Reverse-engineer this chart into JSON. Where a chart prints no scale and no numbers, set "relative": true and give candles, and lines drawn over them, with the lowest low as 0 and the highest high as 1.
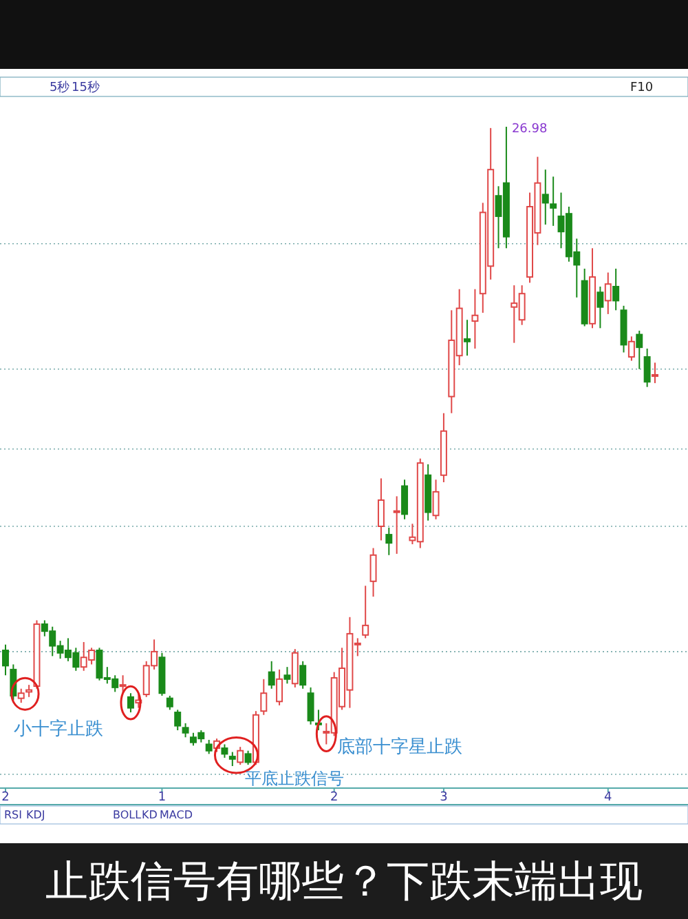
{
  "chart_data": {
    "type": "candlestick",
    "title": "止跌信号有哪些？下跌末端出现",
    "relative": true,
    "ref_lines": [
      {
        "axis": "y",
        "value": 0.817,
        "color": "#77aaaa",
        "line_style": "dotted"
      },
      {
        "axis": "y",
        "value": 0.621,
        "color": "#77aaaa",
        "line_style": "dotted"
      },
      {
        "axis": "y",
        "value": 0.496,
        "color": "#77aaaa",
        "line_style": "dotted"
      },
      {
        "axis": "y",
        "value": 0.375,
        "color": "#77aaaa",
        "line_style": "dotted"
      },
      {
        "axis": "y",
        "value": 0.179,
        "color": "#77aaaa",
        "line_style": "dotted"
      }
    ],
    "categories": [
      "2",
      null,
      null,
      null,
      null,
      null,
      null,
      null,
      null,
      null,
      null,
      null,
      null,
      null,
      null,
      null,
      null,
      null,
      null,
      null,
      "1",
      null,
      null,
      null,
      null,
      null,
      null,
      null,
      null,
      null,
      null,
      null,
      null,
      null,
      null,
      null,
      null,
      null,
      null,
      null,
      null,
      null,
      "2",
      null,
      null,
      null,
      null,
      null,
      null,
      null,
      null,
      null,
      null,
      null,
      null,
      null,
      "3",
      null,
      null,
      null,
      null,
      null,
      null,
      null,
      null,
      null,
      null,
      null,
      null,
      null,
      null,
      null,
      null,
      null,
      null,
      null,
      null,
      "4",
      null,
      null,
      null,
      null,
      null,
      null
    ],
    "ohlc": [
      [
        0.181,
        0.19,
        0.142,
        0.157
      ],
      [
        0.151,
        0.159,
        0.103,
        0.11
      ],
      [
        0.106,
        0.121,
        0.099,
        0.114
      ],
      [
        0.116,
        0.127,
        0.108,
        0.119
      ],
      [
        0.125,
        0.228,
        0.121,
        0.222
      ],
      [
        0.222,
        0.228,
        0.203,
        0.211
      ],
      [
        0.211,
        0.218,
        0.172,
        0.188
      ],
      [
        0.188,
        0.196,
        0.168,
        0.177
      ],
      [
        0.181,
        0.2,
        0.164,
        0.17
      ],
      [
        0.177,
        0.185,
        0.149,
        0.155
      ],
      [
        0.155,
        0.194,
        0.149,
        0.17
      ],
      [
        0.166,
        0.185,
        0.159,
        0.181
      ],
      [
        0.181,
        0.185,
        0.134,
        0.138
      ],
      [
        0.138,
        0.155,
        0.129,
        0.136
      ],
      [
        0.136,
        0.142,
        0.116,
        0.123
      ],
      [
        0.125,
        0.142,
        0.114,
        0.127
      ],
      [
        0.108,
        0.114,
        0.084,
        0.091
      ],
      [
        0.099,
        0.114,
        0.091,
        0.103
      ],
      [
        0.112,
        0.164,
        0.108,
        0.157
      ],
      [
        0.157,
        0.198,
        0.151,
        0.179
      ],
      [
        0.17,
        0.177,
        0.11,
        0.114
      ],
      [
        0.106,
        0.11,
        0.088,
        0.093
      ],
      [
        0.084,
        0.088,
        0.056,
        0.063
      ],
      [
        0.06,
        0.067,
        0.045,
        0.052
      ],
      [
        0.045,
        0.052,
        0.032,
        0.037
      ],
      [
        0.052,
        0.056,
        0.037,
        0.043
      ],
      [
        0.034,
        0.041,
        0.019,
        0.024
      ],
      [
        0.028,
        0.043,
        0.022,
        0.039
      ],
      [
        0.028,
        0.034,
        0.013,
        0.019
      ],
      [
        0.015,
        0.022,
        0,
        0.011
      ],
      [
        0.006,
        0.03,
        0.002,
        0.024
      ],
      [
        0.019,
        0.024,
        0.002,
        0.006
      ],
      [
        0.006,
        0.086,
        0.002,
        0.08
      ],
      [
        0.086,
        0.136,
        0.08,
        0.114
      ],
      [
        0.147,
        0.164,
        0.121,
        0.127
      ],
      [
        0.101,
        0.151,
        0.095,
        0.136
      ],
      [
        0.142,
        0.155,
        0.129,
        0.136
      ],
      [
        0.129,
        0.183,
        0.123,
        0.177
      ],
      [
        0.157,
        0.164,
        0.121,
        0.127
      ],
      [
        0.114,
        0.123,
        0.065,
        0.071
      ],
      [
        0.067,
        0.088,
        0.056,
        0.065
      ],
      [
        0.052,
        0.067,
        0.034,
        0.054
      ],
      [
        0.052,
        0.147,
        0.047,
        0.138
      ],
      [
        0.093,
        0.185,
        0.088,
        0.153
      ],
      [
        0.119,
        0.233,
        0.091,
        0.207
      ],
      [
        0.19,
        0.2,
        0.172,
        0.192
      ],
      [
        0.205,
        0.282,
        0.2,
        0.22
      ],
      [
        0.289,
        0.341,
        0.265,
        0.33
      ],
      [
        0.375,
        0.45,
        0.353,
        0.416
      ],
      [
        0.362,
        0.373,
        0.33,
        0.349
      ],
      [
        0.397,
        0.422,
        0.332,
        0.399
      ],
      [
        0.438,
        0.448,
        0.386,
        0.394
      ],
      [
        0.353,
        0.379,
        0.347,
        0.358
      ],
      [
        0.351,
        0.481,
        0.341,
        0.474
      ],
      [
        0.455,
        0.472,
        0.384,
        0.397
      ],
      [
        0.392,
        0.448,
        0.386,
        0.429
      ],
      [
        0.455,
        0.552,
        0.444,
        0.524
      ],
      [
        0.578,
        0.713,
        0.552,
        0.666
      ],
      [
        0.642,
        0.746,
        0.627,
        0.716
      ],
      [
        0.668,
        0.698,
        0.642,
        0.664
      ],
      [
        0.696,
        0.746,
        0.653,
        0.705
      ],
      [
        0.739,
        0.881,
        0.709,
        0.866
      ],
      [
        0.782,
        0.998,
        0.761,
        0.933
      ],
      [
        0.892,
        0.907,
        0.81,
        0.86
      ],
      [
        0.912,
        1,
        0.81,
        0.828
      ],
      [
        0.718,
        0.752,
        0.662,
        0.724
      ],
      [
        0.698,
        0.752,
        0.69,
        0.739
      ],
      [
        0.765,
        0.897,
        0.756,
        0.875
      ],
      [
        0.834,
        0.953,
        0.815,
        0.912
      ],
      [
        0.894,
        0.933,
        0.847,
        0.881
      ],
      [
        0.879,
        0.922,
        0.845,
        0.873
      ],
      [
        0.86,
        0.897,
        0.81,
        0.836
      ],
      [
        0.864,
        0.875,
        0.789,
        0.797
      ],
      [
        0.804,
        0.825,
        0.733,
        0.784
      ],
      [
        0.759,
        0.778,
        0.688,
        0.692
      ],
      [
        0.692,
        0.81,
        0.685,
        0.765
      ],
      [
        0.741,
        0.75,
        0.685,
        0.718
      ],
      [
        0.728,
        0.772,
        0.707,
        0.754
      ],
      [
        0.75,
        0.778,
        0.713,
        0.728
      ],
      [
        0.713,
        0.72,
        0.647,
        0.659
      ],
      [
        0.64,
        0.672,
        0.634,
        0.664
      ],
      [
        0.675,
        0.681,
        0.621,
        0.655
      ],
      [
        0.64,
        0.653,
        0.593,
        0.601
      ],
      [
        0.61,
        0.631,
        0.599,
        0.612
      ]
    ],
    "annotations": [
      "小十字止跌",
      "平底止跌信号",
      "底部十字星止跌",
      "26.98",
      "5秒",
      "15秒",
      "F10",
      "RSI",
      "KDJ",
      "BOLL",
      "KD",
      "MACD"
    ]
  }
}
